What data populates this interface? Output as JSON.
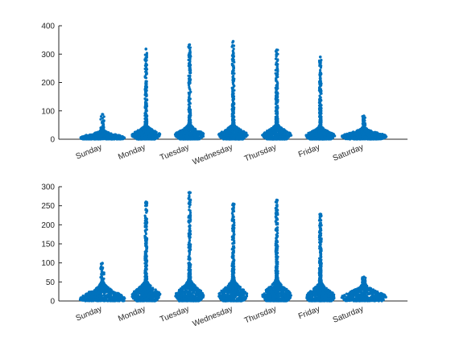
{
  "chart_data": [
    {
      "type": "scatter",
      "plot_style": "swarm",
      "title": "",
      "xlabel": "",
      "ylabel": "",
      "categories": [
        "Sunday",
        "Monday",
        "Tuesday",
        "Wednesday",
        "Thursday",
        "Friday",
        "Saturday"
      ],
      "ylim": [
        0,
        400
      ],
      "yticks": [
        0,
        100,
        200,
        300,
        400
      ],
      "grid": false,
      "legend": "none",
      "marker_color": "#0072BD",
      "series": [
        {
          "category": "Sunday",
          "max": 88,
          "bulk_max": 35,
          "bulk_mode": 5
        },
        {
          "category": "Monday",
          "max": 318,
          "bulk_max": 45,
          "bulk_mode": 15
        },
        {
          "category": "Tuesday",
          "max": 333,
          "bulk_max": 50,
          "bulk_mode": 15
        },
        {
          "category": "Wednesday",
          "max": 345,
          "bulk_max": 50,
          "bulk_mode": 15
        },
        {
          "category": "Thursday",
          "max": 315,
          "bulk_max": 50,
          "bulk_mode": 15
        },
        {
          "category": "Friday",
          "max": 290,
          "bulk_max": 45,
          "bulk_mode": 12
        },
        {
          "category": "Saturday",
          "max": 82,
          "bulk_max": 40,
          "bulk_mode": 10
        }
      ]
    },
    {
      "type": "scatter",
      "plot_style": "swarm",
      "title": "",
      "xlabel": "",
      "ylabel": "",
      "categories": [
        "Sunday",
        "Monday",
        "Tuesday",
        "Wednesday",
        "Thursday",
        "Friday",
        "Saturday"
      ],
      "ylim": [
        0,
        300
      ],
      "yticks": [
        0,
        50,
        100,
        150,
        200,
        250,
        300
      ],
      "grid": false,
      "legend": "none",
      "marker_color": "#0072BD",
      "series": [
        {
          "category": "Sunday",
          "max": 99,
          "bulk_max": 55,
          "bulk_mode": 5
        },
        {
          "category": "Monday",
          "max": 260,
          "bulk_max": 50,
          "bulk_mode": 15
        },
        {
          "category": "Tuesday",
          "max": 285,
          "bulk_max": 55,
          "bulk_mode": 15
        },
        {
          "category": "Wednesday",
          "max": 255,
          "bulk_max": 55,
          "bulk_mode": 15
        },
        {
          "category": "Thursday",
          "max": 265,
          "bulk_max": 55,
          "bulk_mode": 15
        },
        {
          "category": "Friday",
          "max": 228,
          "bulk_max": 50,
          "bulk_mode": 12
        },
        {
          "category": "Saturday",
          "max": 63,
          "bulk_max": 45,
          "bulk_mode": 10
        }
      ]
    }
  ]
}
